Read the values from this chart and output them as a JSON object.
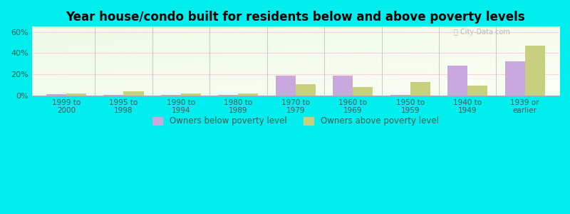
{
  "title": "Year house/condo built for residents below and above poverty levels",
  "categories": [
    "1999 to\n2000",
    "1995 to\n1998",
    "1990 to\n1994",
    "1980 to\n1989",
    "1970 to\n1979",
    "1960 to\n1969",
    "1950 to\n1959",
    "1940 to\n1949",
    "1939 or\nearlier"
  ],
  "below_poverty": [
    1.0,
    0.5,
    0.5,
    0.5,
    19.0,
    19.0,
    0.5,
    28.0,
    32.0
  ],
  "above_poverty": [
    2.0,
    4.0,
    2.0,
    2.0,
    11.0,
    8.0,
    13.0,
    9.0,
    47.0
  ],
  "below_color": "#c9a8de",
  "above_color": "#c8cf7e",
  "yticks": [
    0,
    20,
    40,
    60
  ],
  "ylim": [
    0,
    65
  ],
  "bg_left_top": "#f0fae8",
  "bg_right_bottom": "#fafff5",
  "outer_bg": "#00eeee",
  "title_fontsize": 12,
  "legend_below_label": "Owners below poverty level",
  "legend_above_label": "Owners above poverty level",
  "bar_width": 0.35,
  "separator_positions": [
    0.5,
    1.5,
    2.5,
    3.5,
    4.5,
    5.5,
    6.5,
    7.5
  ]
}
